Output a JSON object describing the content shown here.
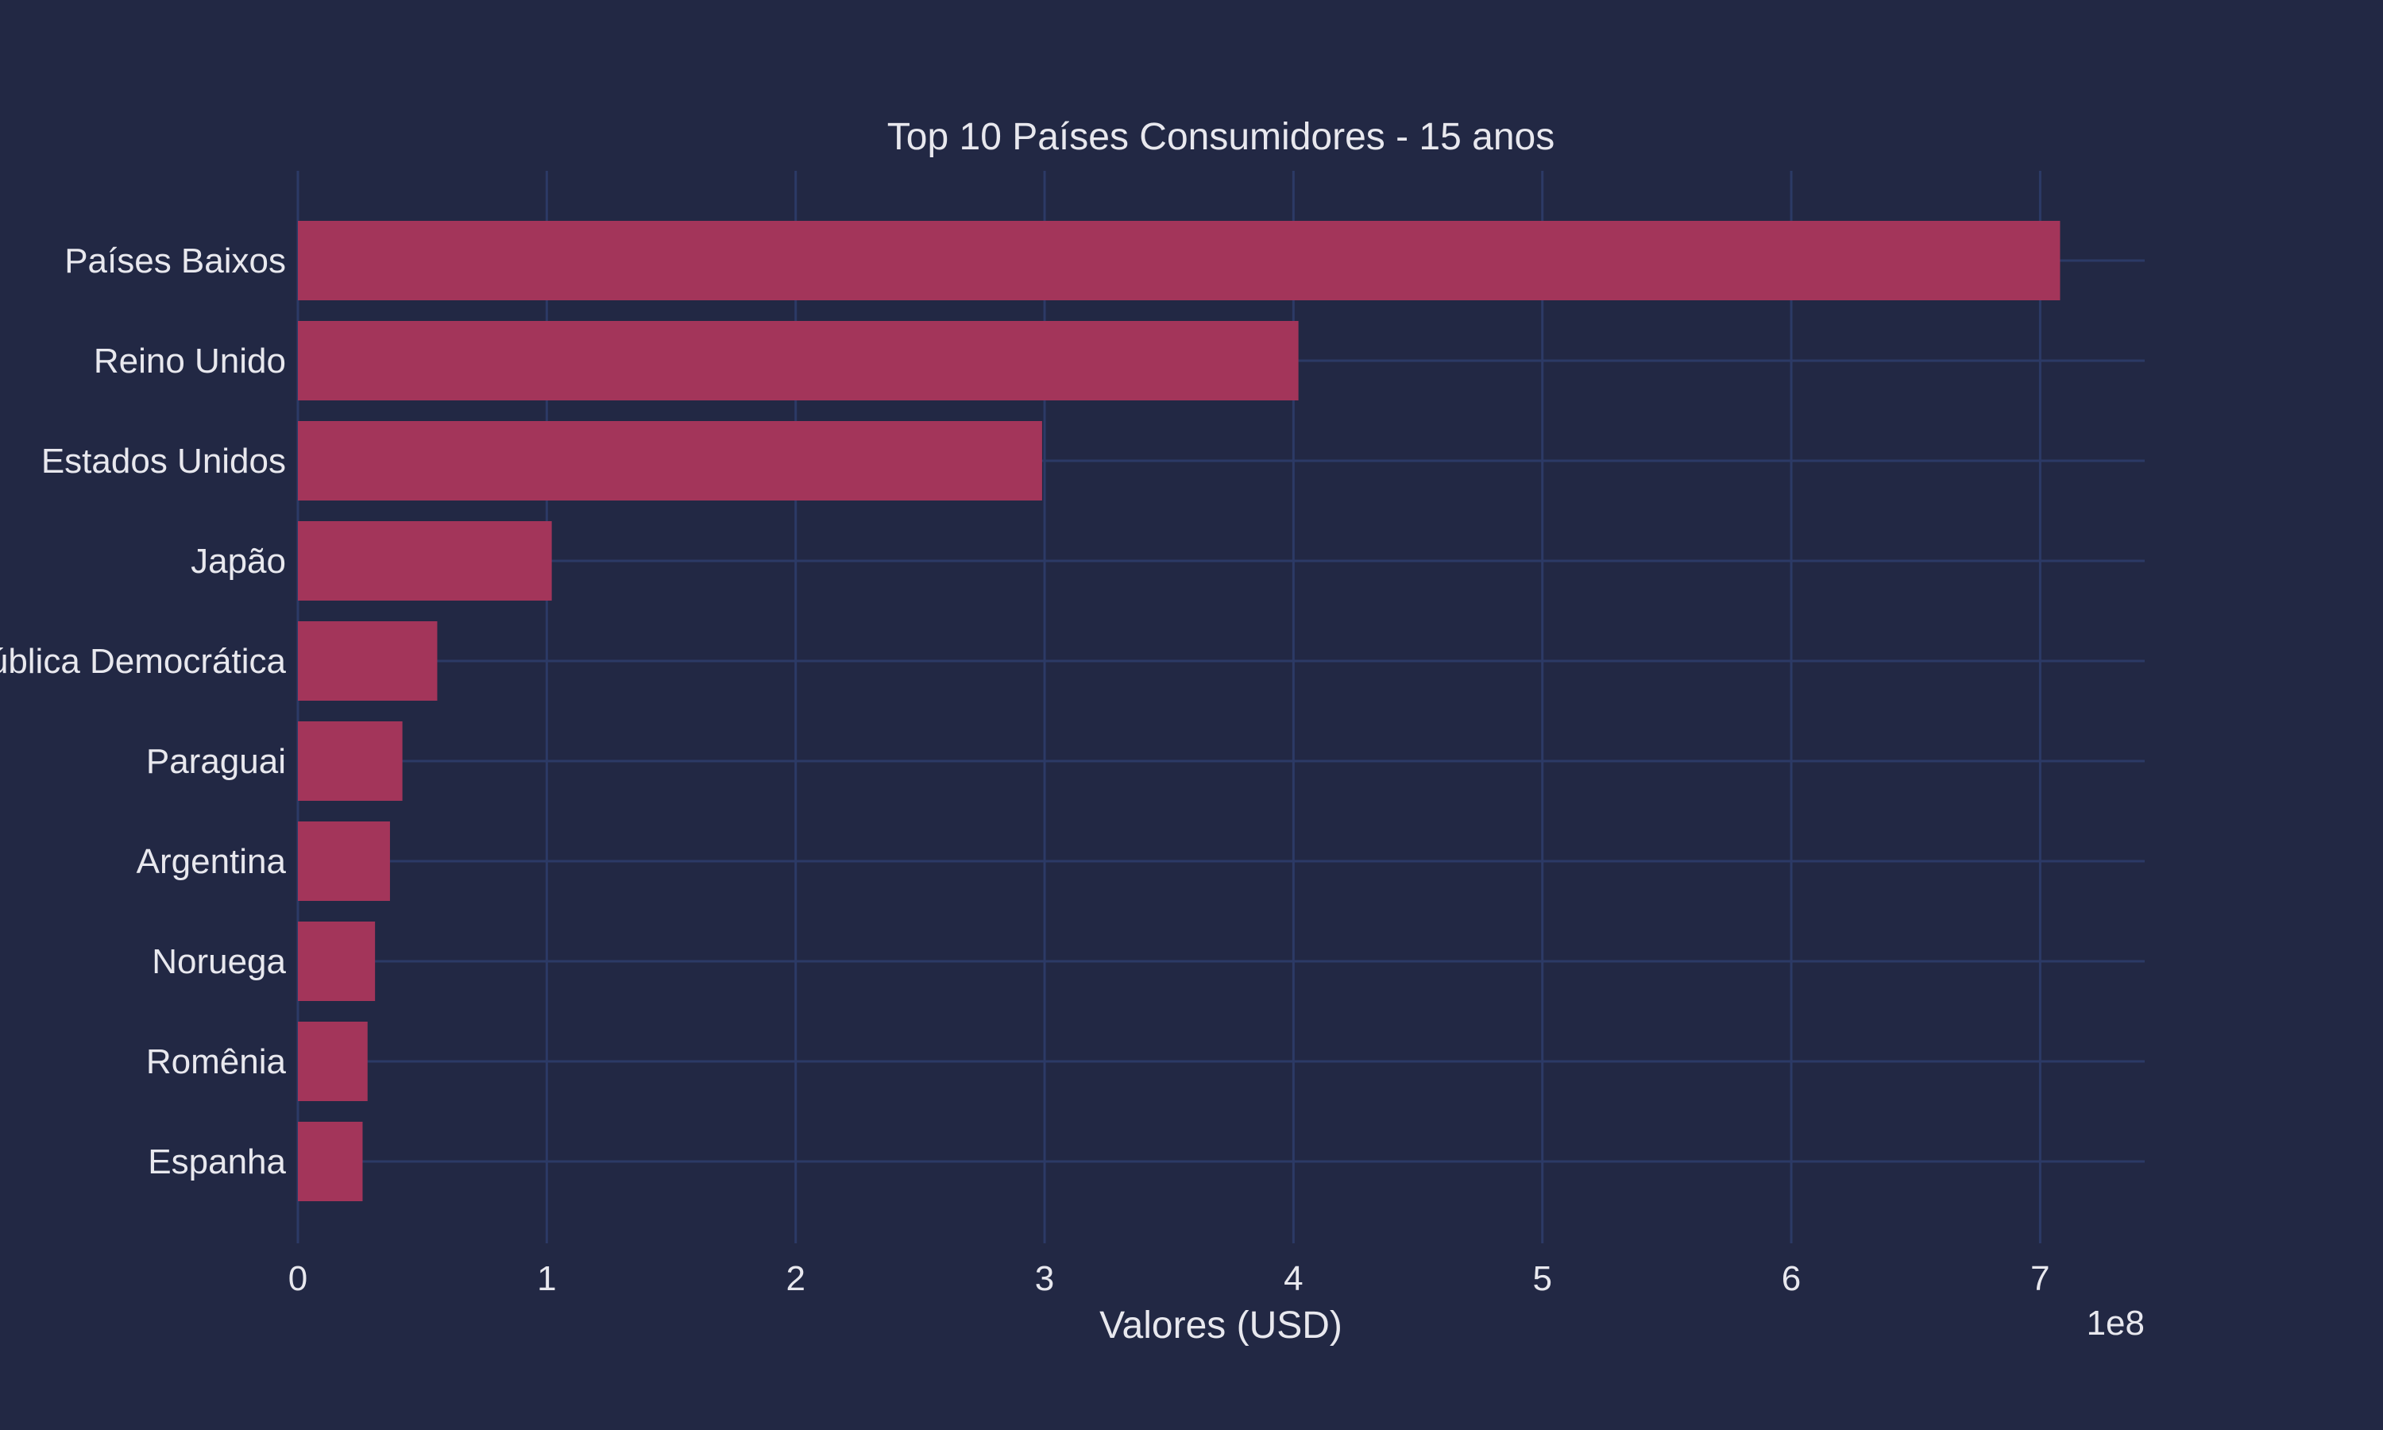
{
  "chart_data": {
    "type": "bar",
    "orientation": "horizontal",
    "title": "Top 10 Países Consumidores - 15 anos",
    "xlabel": "Valores (USD)",
    "ylabel": "",
    "x_scale_label": "1e8",
    "xlim": [
      0,
      7.42
    ],
    "x_ticks": [
      0,
      1,
      2,
      3,
      4,
      5,
      6,
      7
    ],
    "x_unit_multiplier": 100000000,
    "grid": true,
    "categories": [
      "Países Baixos",
      "Reino Unido",
      "Estados Unidos",
      "Japão",
      "República Democrática",
      "Paraguai",
      "Argentina",
      "Noruega",
      "Romênia",
      "Espanha"
    ],
    "values": [
      7.08,
      4.02,
      2.99,
      1.02,
      0.56,
      0.42,
      0.37,
      0.31,
      0.28,
      0.26
    ],
    "colors": {
      "background": "#222844",
      "bar": "#a3355a",
      "grid": "#2c3a66",
      "text": "#e8e8ee"
    }
  }
}
